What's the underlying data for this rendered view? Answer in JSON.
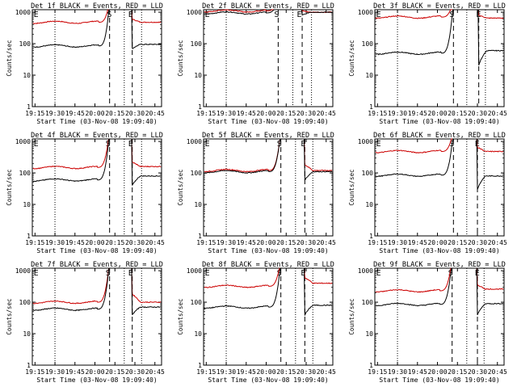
{
  "chart_data": {
    "type": "line",
    "x_tick_labels": [
      "19:15",
      "19:30",
      "19:45",
      "20:00",
      "20:15",
      "20:30",
      "20:45"
    ],
    "x_range": [
      "19:13",
      "20:50"
    ],
    "y_scale": "log",
    "y_range": [
      1,
      1200
    ],
    "y_tick_labels": [
      "1",
      "10",
      "100",
      "1000"
    ],
    "series_colors": {
      "events": "#000000",
      "lld": "#cc0000"
    },
    "panels": [
      {
        "title": "Det 1f BLACK = Events, RED = LLD",
        "ylabel": "Counts/sec",
        "xlabel": "Start Time (03-Nov-08 19:09:40)",
        "markers": {
          "E1": "19:14",
          "S": "20:09",
          "E2": "20:25"
        },
        "dotted_times": [
          "19:30",
          "20:22",
          "20:35"
        ],
        "dashed_times": [
          "20:11",
          "20:28"
        ],
        "events_level": 85,
        "lld_level": 480,
        "rise_peak": 1200,
        "recover": [
          70,
          95
        ],
        "lld_recover": [
          600,
          480
        ]
      },
      {
        "title": "Det 2f BLACK = Events, RED = LLD",
        "ylabel": "Counts/sec",
        "xlabel": "Start Time (03-Nov-08 19:09:40)",
        "markers": {
          "E1": "19:14",
          "S": "20:06",
          "E2": "20:23"
        },
        "dotted_times": [
          "19:30",
          "20:20",
          "20:34"
        ],
        "dashed_times": [
          "20:09",
          "20:27"
        ],
        "events_level": 950,
        "lld_level": 1100,
        "rise_peak": 1200,
        "recover": [
          800,
          1000
        ],
        "lld_recover": [
          1100,
          1000
        ]
      },
      {
        "title": "Det 3f BLACK = Events, RED = LLD",
        "ylabel": "Counts/sec",
        "xlabel": "Start Time (03-Nov-08 19:09:40)",
        "markers": {
          "E1": "19:14",
          "S": "20:09",
          "E2": "20:29"
        },
        "dotted_times": [
          "19:30",
          "20:22",
          "20:36"
        ],
        "dashed_times": [
          "20:12",
          "20:31"
        ],
        "events_level": 50,
        "lld_level": 700,
        "rise_peak": 1200,
        "recover": [
          20,
          60
        ],
        "lld_recover": [
          800,
          650
        ]
      },
      {
        "title": "Det 4f BLACK = Events, RED = LLD",
        "ylabel": "Counts/sec",
        "xlabel": "Start Time (03-Nov-08 19:09:40)",
        "markers": {
          "E1": "19:14",
          "S": "20:08",
          "E2": "20:25"
        },
        "dotted_times": [
          "19:30",
          "20:22",
          "20:35"
        ],
        "dashed_times": [
          "20:11",
          "20:28"
        ],
        "events_level": 60,
        "lld_level": 150,
        "rise_peak": 1200,
        "recover": [
          40,
          80
        ],
        "lld_recover": [
          220,
          160
        ]
      },
      {
        "title": "Det 5f BLACK = Events, RED = LLD",
        "ylabel": "Counts/sec",
        "xlabel": "Start Time (03-Nov-08 19:09:40)",
        "markers": {
          "E1": "19:14",
          "S": "20:08",
          "E2": "20:26"
        },
        "dotted_times": [
          "19:30",
          "20:22",
          "20:35"
        ],
        "dashed_times": [
          "20:11",
          "20:29"
        ],
        "events_level": 110,
        "lld_level": 120,
        "rise_peak": 1200,
        "recover": [
          60,
          110
        ],
        "lld_recover": [
          180,
          120
        ]
      },
      {
        "title": "Det 6f BLACK = Events, RED = LLD",
        "ylabel": "Counts/sec",
        "xlabel": "Start Time (03-Nov-08 19:09:40)",
        "markers": {
          "E1": "19:14",
          "S": "20:09",
          "E2": "20:28"
        },
        "dotted_times": [
          "19:30",
          "20:22",
          "20:35"
        ],
        "dashed_times": [
          "20:12",
          "20:30"
        ],
        "events_level": 85,
        "lld_level": 480,
        "rise_peak": 1200,
        "recover": [
          30,
          80
        ],
        "lld_recover": [
          650,
          480
        ]
      },
      {
        "title": "Det 7f BLACK = Events, RED = LLD",
        "ylabel": "Counts/sec",
        "xlabel": "Start Time (03-Nov-08 19:09:40)",
        "markers": {
          "E1": "19:14",
          "S": "20:08",
          "E2": "20:25"
        },
        "dotted_times": [
          "19:30",
          "20:22",
          "20:35"
        ],
        "dashed_times": [
          "20:11",
          "20:28"
        ],
        "events_level": 60,
        "lld_level": 100,
        "rise_peak": 1200,
        "recover": [
          40,
          70
        ],
        "lld_recover": [
          180,
          100
        ]
      },
      {
        "title": "Det 8f BLACK = Events, RED = LLD",
        "ylabel": "Counts/sec",
        "xlabel": "Start Time (03-Nov-08 19:09:40)",
        "markers": {
          "E1": "19:14",
          "S": "20:08",
          "E2": "20:26"
        },
        "dotted_times": [
          "19:30",
          "20:22",
          "20:35"
        ],
        "dashed_times": [
          "20:11",
          "20:29"
        ],
        "events_level": 70,
        "lld_level": 320,
        "rise_peak": 1200,
        "recover": [
          40,
          80
        ],
        "lld_recover": [
          600,
          400
        ]
      },
      {
        "title": "Det 9f BLACK = Events, RED = LLD",
        "ylabel": "Counts/sec",
        "xlabel": "Start Time (03-Nov-08 19:09:40)",
        "markers": {
          "E1": "19:14",
          "S": "20:08",
          "E2": "20:28"
        },
        "dotted_times": [
          "19:30",
          "20:22",
          "20:35"
        ],
        "dashed_times": [
          "20:11",
          "20:30"
        ],
        "events_level": 85,
        "lld_level": 230,
        "rise_peak": 1200,
        "recover": [
          40,
          90
        ],
        "lld_recover": [
          350,
          260
        ]
      }
    ]
  }
}
